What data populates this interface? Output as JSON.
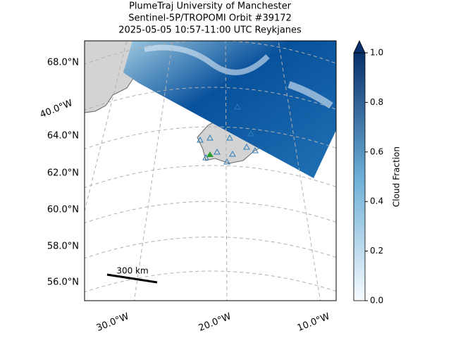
{
  "title": [
    "PlumeTraj    University of Manchester",
    "Sentinel-5P/TROPOMI Orbit #39172",
    "2025-05-05   10:57-11:00 UTC   Reykjanes"
  ],
  "lat_labels": [
    "68.0°N",
    "64.0°N",
    "62.0°N",
    "60.0°N",
    "58.0°N",
    "56.0°N"
  ],
  "lon_labels": [
    "40.0°W",
    "30.0°W",
    "20.0°W",
    "10.0°W"
  ],
  "scale_bar": "300 km",
  "colorbar": {
    "label": "Cloud Fraction",
    "lim": [
      0,
      1
    ],
    "ticks": [
      {
        "value": 0,
        "label": "0.0"
      },
      {
        "value": 0.2,
        "label": "0.2"
      },
      {
        "value": 0.4,
        "label": "0.4"
      },
      {
        "value": 0.6,
        "label": "0.6"
      },
      {
        "value": 0.8,
        "label": "0.8"
      },
      {
        "value": 1,
        "label": "1.0"
      }
    ],
    "colors": [
      "#f7fbff",
      "#08306b"
    ]
  }
}
